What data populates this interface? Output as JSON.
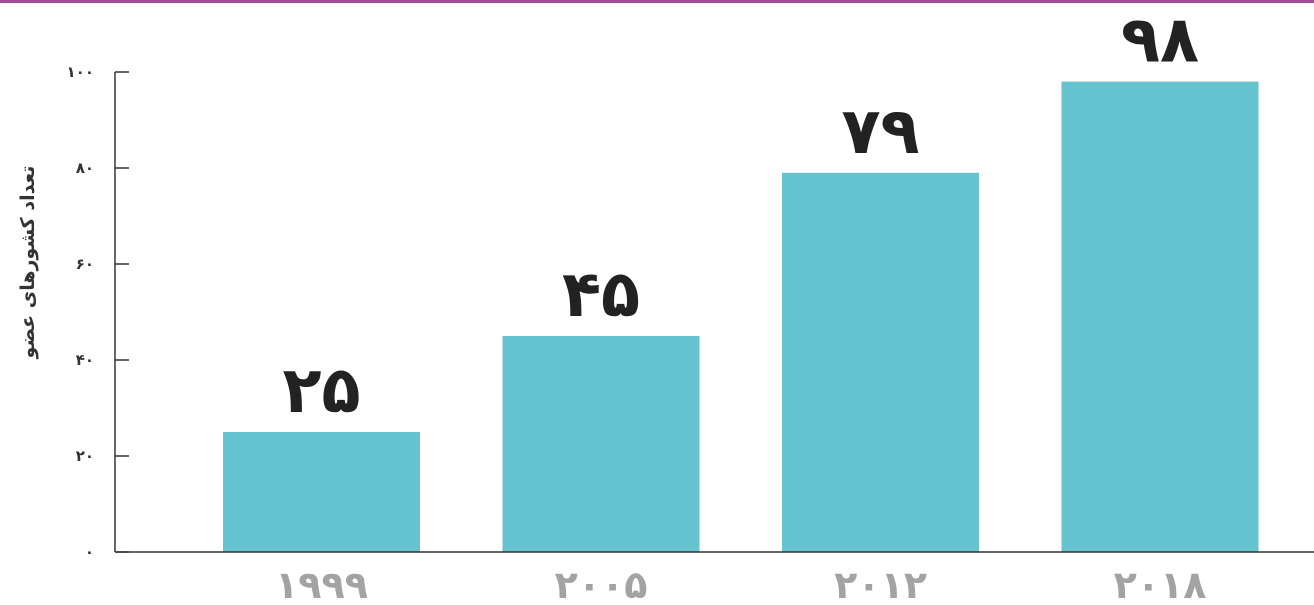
{
  "colors": {
    "top_rule": "#a24d97",
    "bar": "#66c3d0",
    "axis": "#333333",
    "data_label": "#222222",
    "category_label": "#a3a3a3"
  },
  "chart_data": {
    "type": "bar",
    "categories": [
      "1999",
      "2005",
      "2012",
      "2018"
    ],
    "category_labels": [
      "۱۹۹۹",
      "۲۰۰۵",
      "۲۰۱۲",
      "۲۰۱۸"
    ],
    "values": [
      25,
      45,
      79,
      98
    ],
    "data_labels": [
      "۲۵",
      "۴۵",
      "۷۹",
      "۹۸"
    ],
    "ylabel": "تعداد کشورهای عضو",
    "ylim": [
      0,
      100
    ],
    "yticks": [
      0,
      20,
      40,
      60,
      80,
      100
    ],
    "ytick_labels": [
      "۰",
      "۲۰",
      "۴۰",
      "۶۰",
      "۸۰",
      "۱۰۰"
    ],
    "grid": false,
    "legend": "none"
  }
}
